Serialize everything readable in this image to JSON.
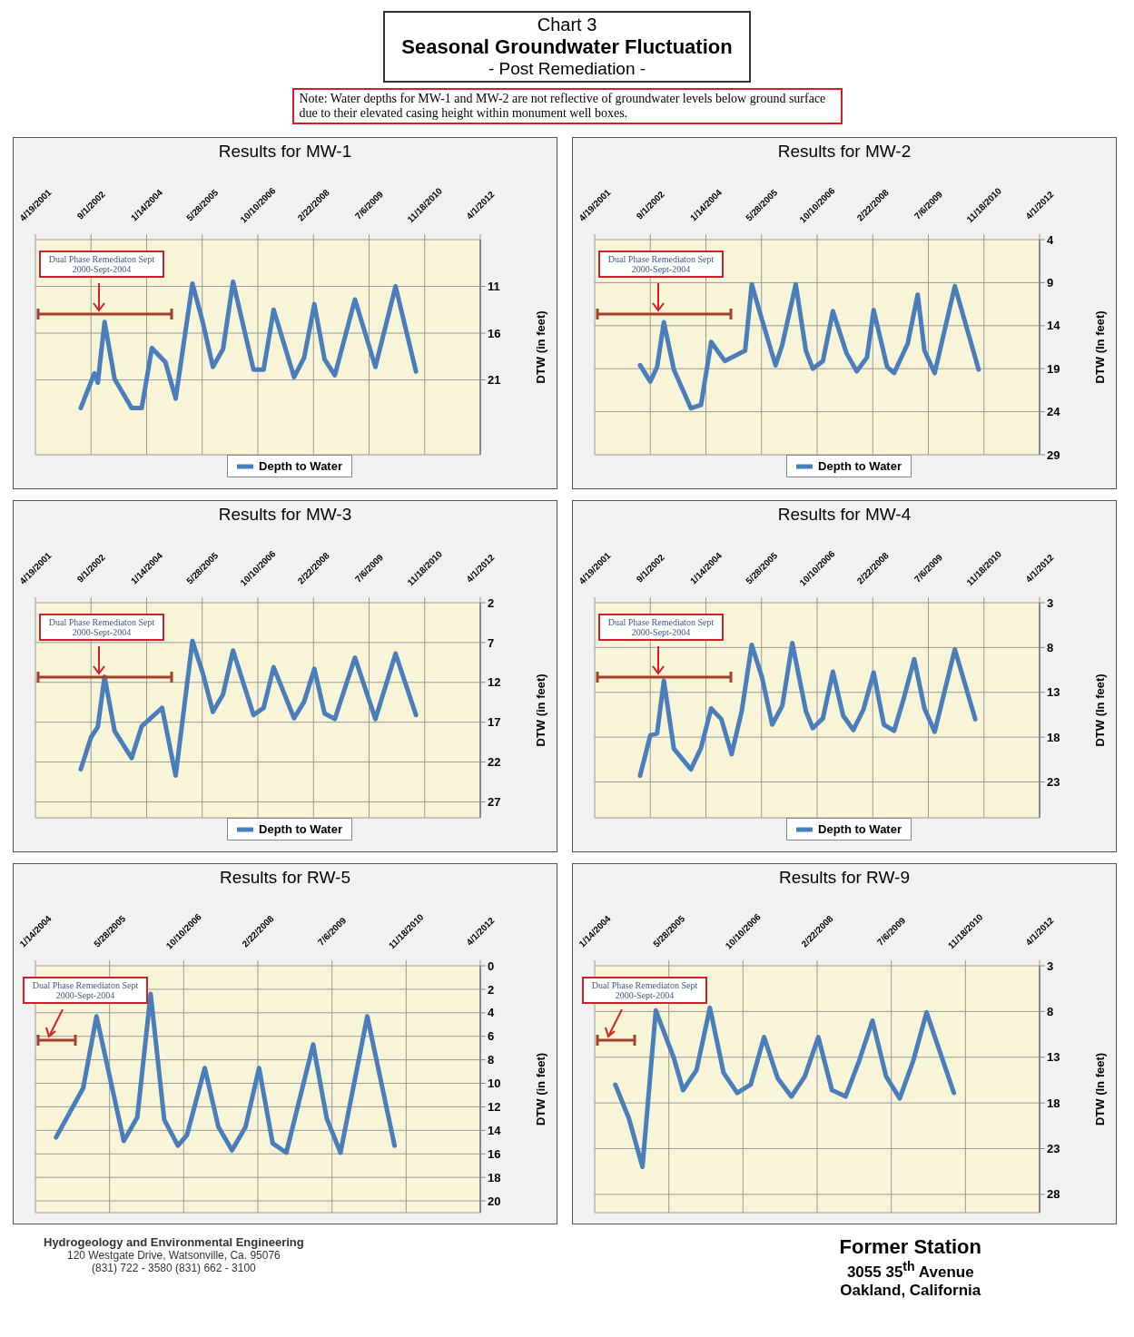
{
  "chart_data": [
    {
      "type": "other",
      "title": "Seasonal Groundwater Fluctuation",
      "subtitle": "- Post Remediation -",
      "annotations": [
        "Chart 3",
        "Note: Water depths for MW-1 and MW-2 are not reflective of groundwater levels below ground surface due to their elevated casing height within monument well boxes."
      ]
    },
    {
      "type": "line",
      "title": "Results for MW-1",
      "ylabel": "DTW (in feet)",
      "grid": true,
      "legend": "bottom",
      "marker": "none",
      "line_style": "solid",
      "annotations": [
        "Dual Phase Remediaton Sept 2000-Sept-2004"
      ],
      "xlim": [
        "2001-04-19",
        "2012-04-01"
      ],
      "xticks": [
        {
          "value": "2001-04-19",
          "label": "4/19/2001"
        },
        {
          "value": "2002-09-01",
          "label": "9/1/2002"
        },
        {
          "value": "2004-01-14",
          "label": "1/14/2004"
        },
        {
          "value": "2005-05-28",
          "label": "5/28/2005"
        },
        {
          "value": "2006-10-10",
          "label": "10/10/2006"
        },
        {
          "value": "2008-02-22",
          "label": "2/22/2008"
        },
        {
          "value": "2009-07-06",
          "label": "7/6/2009"
        },
        {
          "value": "2010-11-18",
          "label": "11/18/2010"
        },
        {
          "value": "2012-04-01",
          "label": "4/1/2012"
        }
      ],
      "ylim": [
        29,
        6
      ],
      "yticks": [
        11,
        16,
        21
      ],
      "x": [
        "2002-06",
        "2002-10",
        "2002-11",
        "2003-01",
        "2003-04",
        "2003-09",
        "2003-12",
        "2004-03",
        "2004-07",
        "2004-10",
        "2005-03",
        "2005-06",
        "2005-09",
        "2005-12",
        "2006-03",
        "2006-09",
        "2006-12",
        "2007-03",
        "2007-09",
        "2007-12",
        "2008-03",
        "2008-06",
        "2008-09",
        "2009-03",
        "2009-09",
        "2010-03",
        "2010-09"
      ],
      "series": [
        {
          "name": "Depth to Water",
          "color": "#4a7ebb",
          "values": [
            24.0,
            20.3,
            21.3,
            14.8,
            20.9,
            24.0,
            24.0,
            17.6,
            19.1,
            23.0,
            10.7,
            14.8,
            19.6,
            17.7,
            10.5,
            19.9,
            19.9,
            13.5,
            20.7,
            18.6,
            12.9,
            18.8,
            20.5,
            12.4,
            19.6,
            11.0,
            20.1
          ]
        }
      ]
    },
    {
      "type": "line",
      "title": "Results for MW-2",
      "ylabel": "DTW (In feet)",
      "grid": true,
      "legend": "bottom",
      "marker": "none",
      "line_style": "solid",
      "annotations": [
        "Dual Phase Remediaton Sept 2000-Sept-2004"
      ],
      "xlim": [
        "2001-04-19",
        "2012-04-01"
      ],
      "xticks": [
        {
          "value": "2001-04-19",
          "label": "4/19/2001"
        },
        {
          "value": "2002-09-01",
          "label": "9/1/2002"
        },
        {
          "value": "2004-01-14",
          "label": "1/14/2004"
        },
        {
          "value": "2005-05-28",
          "label": "5/28/2005"
        },
        {
          "value": "2006-10-10",
          "label": "10/10/2006"
        },
        {
          "value": "2008-02-22",
          "label": "2/22/2008"
        },
        {
          "value": "2009-07-06",
          "label": "7/6/2009"
        },
        {
          "value": "2010-11-18",
          "label": "11/18/2010"
        },
        {
          "value": "2012-04-01",
          "label": "4/1/2012"
        }
      ],
      "ylim": [
        29,
        4
      ],
      "yticks": [
        4,
        9,
        14,
        19,
        24,
        29
      ],
      "x": [
        "2002-06",
        "2002-09",
        "2002-11",
        "2003-01",
        "2003-04",
        "2003-09",
        "2003-12",
        "2004-03",
        "2004-07",
        "2005-01",
        "2005-03",
        "2005-06",
        "2005-10",
        "2005-12",
        "2006-04",
        "2006-07",
        "2006-09",
        "2006-12",
        "2007-03",
        "2007-07",
        "2007-10",
        "2008-01",
        "2008-03",
        "2008-07",
        "2008-09",
        "2009-01",
        "2009-04",
        "2009-06",
        "2009-09",
        "2010-03",
        "2010-10"
      ],
      "series": [
        {
          "name": "Depth to Water",
          "color": "#4a7ebb",
          "values": [
            18.6,
            20.5,
            18.8,
            13.6,
            19.1,
            23.6,
            23.2,
            15.9,
            18.1,
            16.9,
            9.2,
            13.3,
            18.6,
            16.2,
            9.2,
            16.9,
            19.0,
            18.1,
            12.3,
            17.2,
            19.3,
            17.7,
            12.2,
            18.8,
            19.5,
            16.1,
            10.4,
            16.9,
            19.5,
            9.4,
            19.1
          ]
        }
      ]
    },
    {
      "type": "line",
      "title": "Results for MW-3",
      "ylabel": "DTW (in feet)",
      "grid": true,
      "legend": "bottom",
      "marker": "none",
      "line_style": "solid",
      "annotations": [
        "Dual Phase Remediaton Sept 2000-Sept-2004"
      ],
      "xlim": [
        "2001-04-19",
        "2012-04-01"
      ],
      "xticks": [
        {
          "value": "2001-04-19",
          "label": "4/19/2001"
        },
        {
          "value": "2002-09-01",
          "label": "9/1/2002"
        },
        {
          "value": "2004-01-14",
          "label": "1/14/2004"
        },
        {
          "value": "2005-05-28",
          "label": "5/28/2005"
        },
        {
          "value": "2006-10-10",
          "label": "10/10/2006"
        },
        {
          "value": "2008-02-22",
          "label": "2/22/2008"
        },
        {
          "value": "2009-07-06",
          "label": "7/6/2009"
        },
        {
          "value": "2010-11-18",
          "label": "11/18/2010"
        },
        {
          "value": "2012-04-01",
          "label": "4/1/2012"
        }
      ],
      "ylim": [
        29,
        2
      ],
      "yticks": [
        2,
        7,
        12,
        17,
        22,
        27
      ],
      "x": [
        "2002-06",
        "2002-09",
        "2002-11",
        "2003-01",
        "2003-04",
        "2003-09",
        "2003-12",
        "2004-06",
        "2004-10",
        "2005-03",
        "2005-06",
        "2005-09",
        "2005-12",
        "2006-03",
        "2006-09",
        "2006-12",
        "2007-03",
        "2007-09",
        "2007-12",
        "2008-03",
        "2008-06",
        "2008-09",
        "2009-03",
        "2009-09",
        "2010-03",
        "2010-09"
      ],
      "series": [
        {
          "name": "Depth to Water",
          "color": "#4a7ebb",
          "values": [
            22.9,
            18.9,
            17.6,
            11.3,
            18.1,
            21.5,
            17.5,
            15.2,
            23.7,
            6.8,
            10.8,
            15.7,
            13.5,
            8.0,
            16.1,
            15.2,
            10.1,
            16.5,
            14.4,
            10.3,
            15.9,
            16.6,
            8.9,
            16.6,
            8.4,
            16.1
          ]
        }
      ]
    },
    {
      "type": "line",
      "title": "Results for MW-4",
      "ylabel": "DTW (In feet)",
      "grid": true,
      "legend": "bottom",
      "marker": "none",
      "line_style": "solid",
      "annotations": [
        "Dual Phase Remediaton Sept 2000-Sept-2004"
      ],
      "xlim": [
        "2001-04-19",
        "2012-04-01"
      ],
      "xticks": [
        {
          "value": "2001-04-19",
          "label": "4/19/2001"
        },
        {
          "value": "2002-09-01",
          "label": "9/1/2002"
        },
        {
          "value": "2004-01-14",
          "label": "1/14/2004"
        },
        {
          "value": "2005-05-28",
          "label": "5/28/2005"
        },
        {
          "value": "2006-10-10",
          "label": "10/10/2006"
        },
        {
          "value": "2008-02-22",
          "label": "2/22/2008"
        },
        {
          "value": "2009-07-06",
          "label": "7/6/2009"
        },
        {
          "value": "2010-11-18",
          "label": "11/18/2010"
        },
        {
          "value": "2012-04-01",
          "label": "4/1/2012"
        }
      ],
      "ylim": [
        27,
        3
      ],
      "yticks": [
        3,
        8,
        13,
        18,
        23
      ],
      "x": [
        "2002-06",
        "2002-09",
        "2002-11",
        "2003-01",
        "2003-04",
        "2003-09",
        "2003-12",
        "2004-03",
        "2004-06",
        "2004-09",
        "2004-12",
        "2005-03",
        "2005-06",
        "2005-09",
        "2005-12",
        "2006-03",
        "2006-07",
        "2006-09",
        "2006-12",
        "2007-03",
        "2007-06",
        "2007-09",
        "2007-12",
        "2008-03",
        "2008-06",
        "2008-09",
        "2008-12",
        "2009-03",
        "2009-06",
        "2009-09",
        "2010-03",
        "2010-09"
      ],
      "series": [
        {
          "name": "Depth to Water",
          "color": "#4a7ebb",
          "values": [
            22.3,
            17.8,
            17.6,
            11.7,
            19.3,
            21.6,
            19.2,
            14.8,
            16.0,
            19.9,
            15.1,
            7.7,
            11.3,
            16.6,
            14.5,
            7.5,
            15.1,
            17.0,
            15.9,
            10.7,
            15.6,
            17.2,
            14.9,
            10.8,
            16.6,
            17.3,
            13.5,
            9.3,
            14.8,
            17.4,
            8.2,
            16.0
          ]
        }
      ]
    },
    {
      "type": "line",
      "title": "Results for RW-5",
      "ylabel": "DTW (in feet)",
      "grid": true,
      "marker": "none",
      "line_style": "solid",
      "annotations": [
        "Dual Phase Remediaton Sept 2000-Sept-2004"
      ],
      "xlim": [
        "2004-01-14",
        "2012-04-01"
      ],
      "xticks": [
        {
          "value": "2004-01-14",
          "label": "1/14/2004"
        },
        {
          "value": "2005-05-28",
          "label": "5/28/2005"
        },
        {
          "value": "2006-10-10",
          "label": "10/10/2006"
        },
        {
          "value": "2008-02-22",
          "label": "2/22/2008"
        },
        {
          "value": "2009-07-06",
          "label": "7/6/2009"
        },
        {
          "value": "2010-11-18",
          "label": "11/18/2010"
        },
        {
          "value": "2012-04-01",
          "label": "4/1/2012"
        }
      ],
      "ylim": [
        21,
        0
      ],
      "yticks": [
        0,
        2,
        4,
        6,
        8,
        10,
        12,
        14,
        16,
        18,
        20
      ],
      "x": [
        "2004-06",
        "2004-12",
        "2005-03",
        "2005-09",
        "2005-12",
        "2006-03",
        "2006-06",
        "2006-09",
        "2006-11",
        "2007-03",
        "2007-06",
        "2007-09",
        "2007-12",
        "2008-03",
        "2008-06",
        "2008-09",
        "2009-03",
        "2009-06",
        "2009-09",
        "2010-03",
        "2010-09"
      ],
      "series": [
        {
          "color": "#4a7ebb",
          "values": [
            14.6,
            10.4,
            4.3,
            14.9,
            12.9,
            2.4,
            13.1,
            15.3,
            14.4,
            8.7,
            13.7,
            15.7,
            13.7,
            8.7,
            15.1,
            15.9,
            6.7,
            13.0,
            15.9,
            4.3,
            15.3
          ]
        }
      ]
    },
    {
      "type": "line",
      "title": "Results for RW-9",
      "ylabel": "DTW (In feet)",
      "grid": true,
      "marker": "none",
      "line_style": "solid",
      "annotations": [
        "Dual Phase Remediaton Sept 2000-Sept-2004"
      ],
      "xlim": [
        "2004-01-14",
        "2012-04-01"
      ],
      "xticks": [
        {
          "value": "2004-01-14",
          "label": "1/14/2004"
        },
        {
          "value": "2005-05-28",
          "label": "5/28/2005"
        },
        {
          "value": "2006-10-10",
          "label": "10/10/2006"
        },
        {
          "value": "2008-02-22",
          "label": "2/22/2008"
        },
        {
          "value": "2009-07-06",
          "label": "7/6/2009"
        },
        {
          "value": "2010-11-18",
          "label": "11/18/2010"
        },
        {
          "value": "2012-04-01",
          "label": "4/1/2012"
        }
      ],
      "ylim": [
        30,
        3
      ],
      "yticks": [
        3,
        8,
        13,
        18,
        23,
        28
      ],
      "x": [
        "2004-06",
        "2004-09",
        "2004-12",
        "2005-03",
        "2005-07",
        "2005-09",
        "2005-12",
        "2006-03",
        "2006-06",
        "2006-09",
        "2006-12",
        "2007-03",
        "2007-06",
        "2007-09",
        "2007-12",
        "2008-03",
        "2008-06",
        "2008-09",
        "2008-12",
        "2009-03",
        "2009-06",
        "2009-09",
        "2009-12",
        "2010-03",
        "2010-09"
      ],
      "series": [
        {
          "color": "#4a7ebb",
          "values": [
            16.0,
            19.7,
            25.0,
            7.9,
            13.1,
            16.6,
            14.4,
            7.6,
            14.7,
            16.9,
            16.0,
            10.8,
            15.3,
            17.3,
            15.1,
            10.8,
            16.6,
            17.3,
            13.4,
            9.0,
            15.1,
            17.5,
            13.4,
            8.1,
            16.9
          ]
        }
      ]
    },
    {
      "type": "other",
      "title": "Former Station",
      "annotations": [
        "3055 35$^{th}$ Avenue",
        "Oakland, California",
        "Hydrogeology and Environmental Engineering",
        "120 Westgate Drive, Watsonville, Ca. 95076",
        "(831) 722 - 3580  (831) 662 - 3100"
      ]
    }
  ]
}
